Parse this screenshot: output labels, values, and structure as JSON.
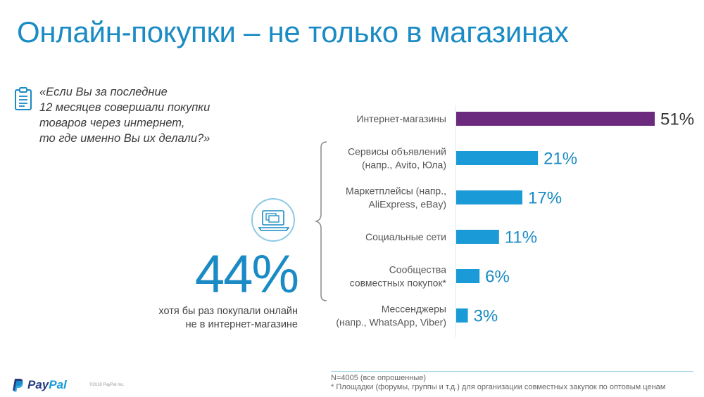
{
  "title": "Онлайн-покупки – не только в магазинах",
  "question": {
    "lines": [
      "«Если Вы за последние",
      "12 месяцев совершали покупки",
      "товаров через интернет,",
      "то где именно Вы их делали?»"
    ]
  },
  "highlight": {
    "value": "44%",
    "caption_lines": [
      "хотя бы раз покупали онлайн",
      "не в интернет-магазине"
    ]
  },
  "chart_data": {
    "type": "bar",
    "orientation": "horizontal",
    "categories": [
      [
        "Интернет-магазины"
      ],
      [
        "Сервисы объявлений",
        "(напр., Avito, Юла)"
      ],
      [
        "Маркетплейсы (напр.,",
        "AliExpress, eBay)"
      ],
      [
        "Социальные сети"
      ],
      [
        "Сообщества",
        "совместных покупок*"
      ],
      [
        "Мессенджеры",
        "(напр., WhatsApp, Viber)"
      ]
    ],
    "values": [
      51,
      21,
      17,
      11,
      6,
      3
    ],
    "value_labels": [
      "51%",
      "21%",
      "17%",
      "11%",
      "6%",
      "3%"
    ],
    "bar_colors": [
      "#6b2a7e",
      "#1a9bd7",
      "#1a9bd7",
      "#1a9bd7",
      "#1a9bd7",
      "#1a9bd7"
    ],
    "label_colors": [
      "#333333",
      "#1a8bc4",
      "#1a8bc4",
      "#1a8bc4",
      "#1a8bc4",
      "#1a8bc4"
    ],
    "xlim": [
      0,
      51
    ]
  },
  "footnotes": [
    "N=4005 (все опрошенные)",
    "* Площадки (форумы, группы и т.д.) для организации совместных закупок по оптовым ценам"
  ],
  "brand": {
    "pay": "Pay",
    "pal": "Pal",
    "copyright": "©2018 PayPal Inc."
  },
  "colors": {
    "title": "#1a8bc4",
    "accent": "#1a9bd7",
    "top_bar": "#6b2a7e"
  },
  "icons": {
    "question": "clipboard-icon",
    "highlight": "laptop-icon",
    "brand": "paypal-logo"
  }
}
